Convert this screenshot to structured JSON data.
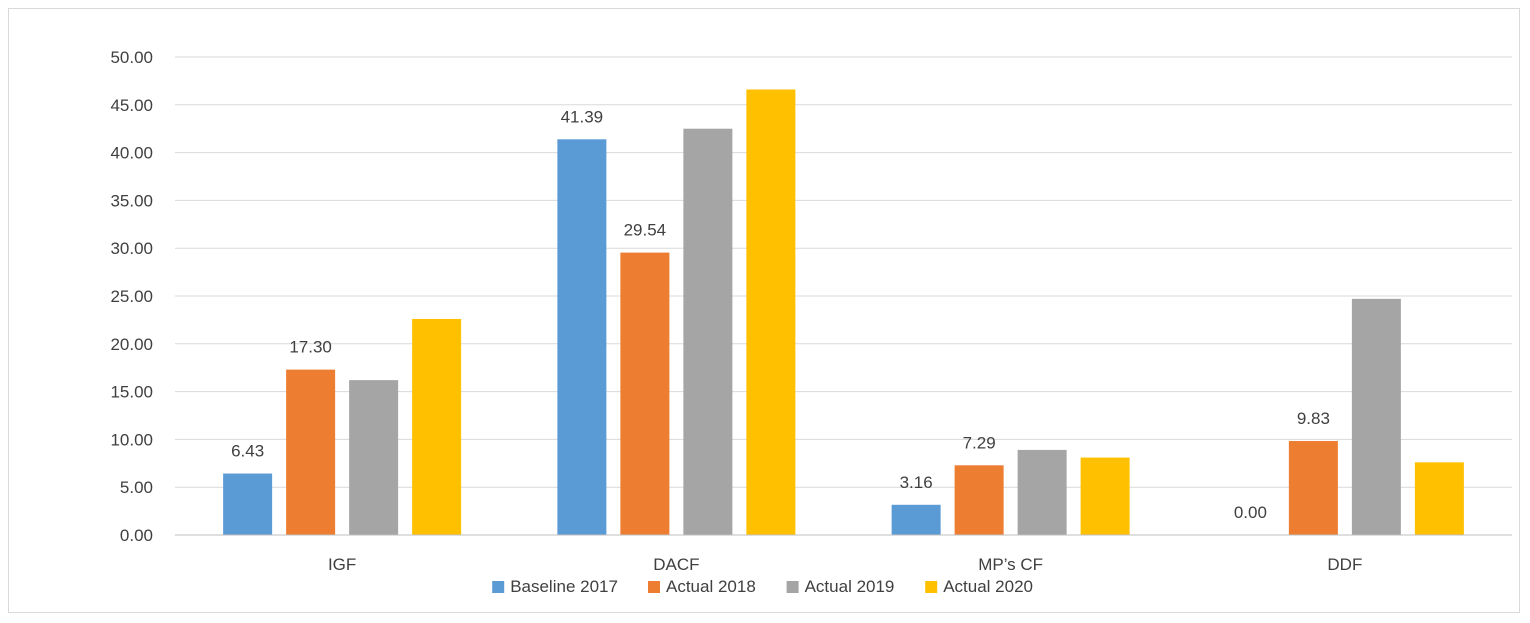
{
  "chart_data": {
    "type": "bar",
    "title": "",
    "xlabel": "",
    "ylabel": "",
    "categories": [
      "IGF",
      "DACF",
      "MP’s CF",
      "DDF"
    ],
    "ylim": [
      0,
      50
    ],
    "ytick_step": 5,
    "ytick_decimals": 2,
    "grid": true,
    "legend_position": "bottom",
    "series": [
      {
        "name": "Baseline 2017",
        "color": "#5b9bd5",
        "values": [
          6.43,
          41.39,
          3.16,
          0.0
        ],
        "data_labels": [
          "6.43",
          "41.39",
          "3.16",
          "0.00"
        ]
      },
      {
        "name": "Actual 2018",
        "color": "#ed7d31",
        "values": [
          17.3,
          29.54,
          7.29,
          9.83
        ],
        "data_labels": [
          "17.30",
          "29.54",
          "7.29",
          "9.83"
        ]
      },
      {
        "name": "Actual 2019",
        "color": "#a5a5a5",
        "values": [
          16.2,
          42.5,
          8.9,
          24.7
        ],
        "data_labels": [
          null,
          null,
          null,
          null
        ]
      },
      {
        "name": "Actual 2020",
        "color": "#ffc000",
        "values": [
          22.6,
          46.6,
          8.1,
          7.6
        ],
        "data_labels": [
          null,
          null,
          null,
          null
        ]
      }
    ]
  }
}
